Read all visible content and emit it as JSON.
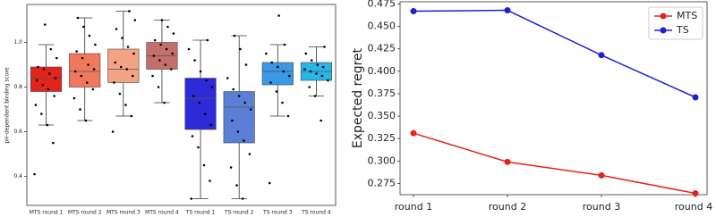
{
  "chart_data": [
    {
      "type": "box",
      "ylabel": "pH-dependent binding score",
      "categories": [
        "MTS round 1",
        "MTS round 2",
        "MTS round 3",
        "MTS round 4",
        "TS round 1",
        "TS round 2",
        "TS round 3",
        "TS round 4"
      ],
      "ylim": [
        0.27,
        1.17
      ],
      "yticks": [
        0.4,
        0.6,
        0.8,
        {
          "value": 1,
          "label": "1.0"
        }
      ],
      "grid": false,
      "boxes": [
        {
          "color": "#e3231c",
          "whislo": 0.63,
          "q1": 0.78,
          "median": 0.84,
          "q3": 0.89,
          "whishi": 0.99,
          "points": [
            0.41,
            0.55,
            0.63,
            0.68,
            0.72,
            0.76,
            0.79,
            0.81,
            0.83,
            0.84,
            0.86,
            0.88,
            0.89,
            0.93,
            0.97,
            1.08
          ]
        },
        {
          "color": "#f0785c",
          "whislo": 0.65,
          "q1": 0.8,
          "median": 0.87,
          "q3": 0.95,
          "whishi": 1.11,
          "points": [
            0.65,
            0.7,
            0.75,
            0.79,
            0.82,
            0.85,
            0.87,
            0.88,
            0.9,
            0.93,
            0.96,
            0.99,
            1.03,
            1.07,
            1.11
          ]
        },
        {
          "color": "#f4a385",
          "whislo": 0.67,
          "q1": 0.82,
          "median": 0.88,
          "q3": 0.97,
          "whishi": 1.14,
          "points": [
            0.6,
            0.67,
            0.72,
            0.77,
            0.82,
            0.85,
            0.88,
            0.89,
            0.91,
            0.95,
            0.98,
            1.02,
            1.06,
            1.1,
            1.14
          ]
        },
        {
          "color": "#c56f6c",
          "whislo": 0.73,
          "q1": 0.88,
          "median": 0.94,
          "q3": 1.0,
          "whishi": 1.1,
          "points": [
            0.73,
            0.8,
            0.85,
            0.88,
            0.9,
            0.92,
            0.94,
            0.95,
            0.97,
            0.99,
            1.01,
            1.04,
            1.07,
            1.1
          ]
        },
        {
          "color": "#2d2bd7",
          "whislo": 0.3,
          "q1": 0.61,
          "median": 0.75,
          "q3": 0.84,
          "whishi": 1.01,
          "points": [
            0.3,
            0.38,
            0.45,
            0.53,
            0.58,
            0.63,
            0.68,
            0.73,
            0.76,
            0.8,
            0.83,
            0.87,
            0.92,
            0.97,
            1.01
          ]
        },
        {
          "color": "#5b7fd6",
          "whislo": 0.3,
          "q1": 0.55,
          "median": 0.71,
          "q3": 0.78,
          "whishi": 1.03,
          "points": [
            0.3,
            0.36,
            0.44,
            0.5,
            0.56,
            0.6,
            0.65,
            0.7,
            0.73,
            0.76,
            0.79,
            0.84,
            0.9,
            0.97,
            1.03
          ]
        },
        {
          "color": "#3a98e6",
          "whislo": 0.67,
          "q1": 0.81,
          "median": 0.87,
          "q3": 0.91,
          "whishi": 0.99,
          "points": [
            0.37,
            0.67,
            0.73,
            0.78,
            0.82,
            0.85,
            0.87,
            0.89,
            0.91,
            0.95,
            0.99,
            1.12
          ]
        },
        {
          "color": "#27b6e6",
          "whislo": 0.76,
          "q1": 0.83,
          "median": 0.87,
          "q3": 0.91,
          "whishi": 0.98,
          "points": [
            0.65,
            0.76,
            0.8,
            0.83,
            0.85,
            0.86,
            0.87,
            0.88,
            0.89,
            0.9,
            0.92,
            0.95,
            0.98
          ]
        }
      ]
    },
    {
      "type": "line",
      "ylabel": "Expected regret",
      "categories": [
        "round 1",
        "round 2",
        "round 3",
        "round 4"
      ],
      "ylim": [
        0.2625,
        0.4775
      ],
      "yticks": [
        0.275,
        {
          "value": 0.3,
          "label": "0.300"
        },
        0.325,
        {
          "value": 0.35,
          "label": "0.350"
        },
        0.375,
        {
          "value": 0.4,
          "label": "0.400"
        },
        0.425,
        {
          "value": 0.45,
          "label": "0.450"
        },
        0.475
      ],
      "grid": false,
      "legend": "upper right",
      "series": [
        {
          "name": "MTS",
          "color": "#e3231c",
          "values": [
            0.331,
            0.299,
            0.284,
            0.264
          ]
        },
        {
          "name": "TS",
          "color": "#1f1fd6",
          "values": [
            0.467,
            0.468,
            0.418,
            0.371
          ]
        }
      ]
    }
  ]
}
